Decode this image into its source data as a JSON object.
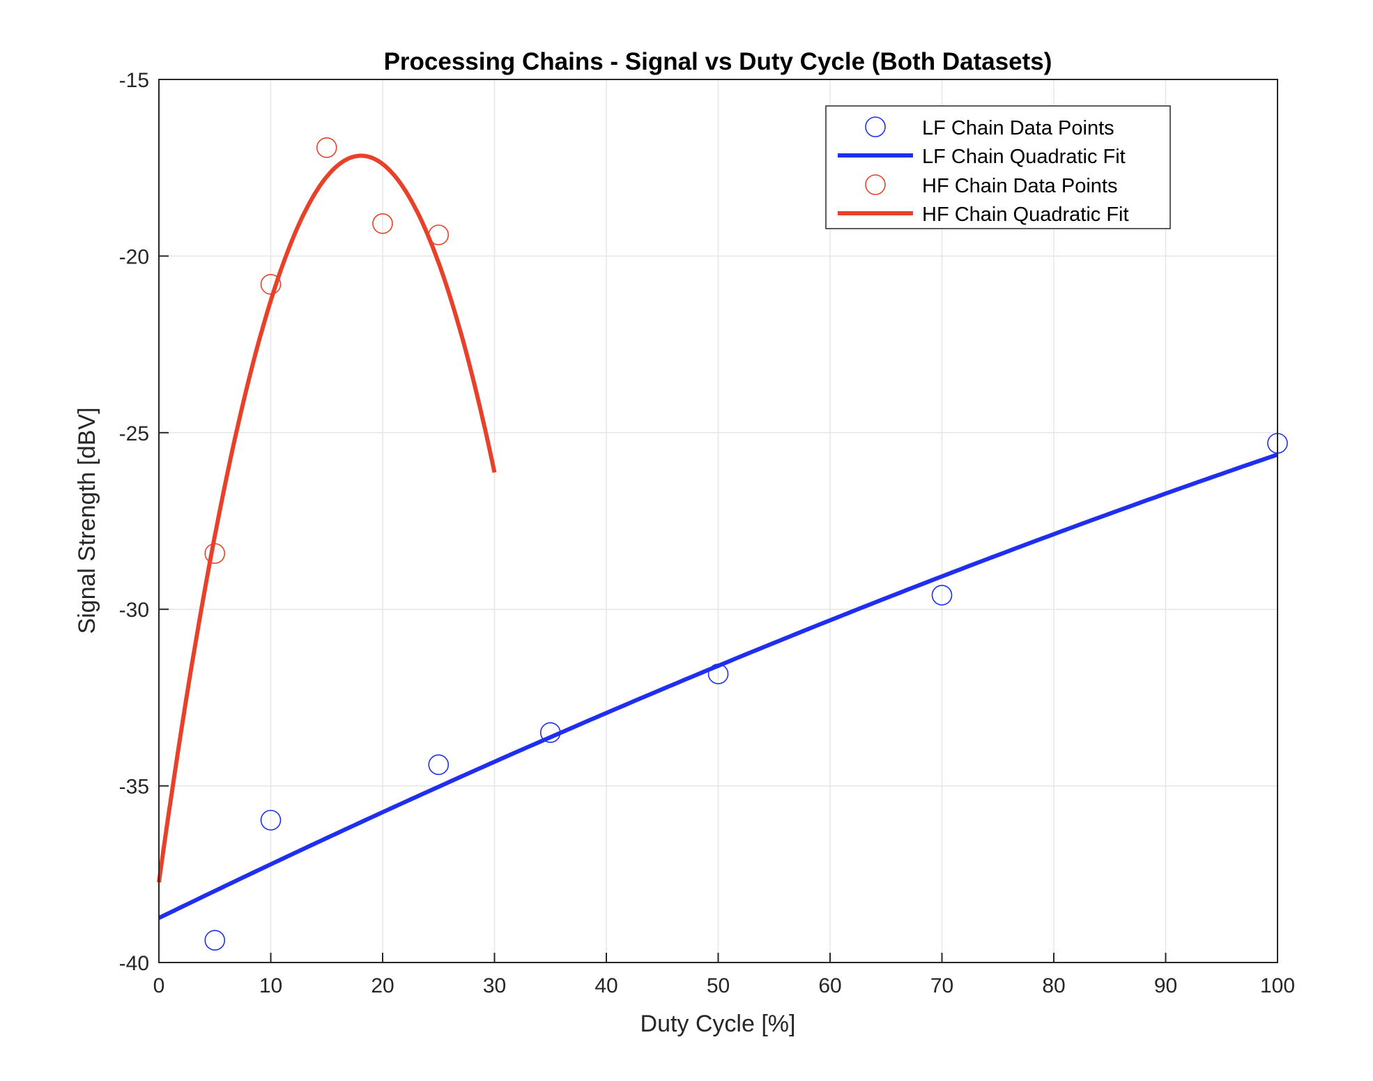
{
  "chart_data": {
    "type": "scatter",
    "title": "Processing Chains - Signal vs Duty Cycle (Both Datasets)",
    "xlabel": "Duty Cycle [%]",
    "ylabel": "Signal Strength [dBV]",
    "xlim": [
      0,
      100
    ],
    "ylim": [
      -40,
      -15
    ],
    "xticks": [
      0,
      10,
      20,
      30,
      40,
      50,
      60,
      70,
      80,
      90,
      100
    ],
    "yticks": [
      -40,
      -35,
      -30,
      -25,
      -20,
      -15
    ],
    "grid": true,
    "legend_position": "upper right (inside)",
    "colors": {
      "lf": "#1f2ff0",
      "hf": "#e8412a"
    },
    "series": [
      {
        "name": "LF Chain Data Points",
        "kind": "markers",
        "marker": "circle",
        "color": "#1f2ff0",
        "x": [
          5,
          10,
          25,
          35,
          50,
          70,
          100
        ],
        "y": [
          -39.37,
          -35.97,
          -34.4,
          -33.49,
          -31.83,
          -29.6,
          -25.3
        ]
      },
      {
        "name": "LF Chain Quadratic Fit",
        "kind": "line",
        "color": "#1f2ff0",
        "x_range": [
          0,
          100
        ],
        "quadratic": {
          "a": -0.000232,
          "b": 0.1544,
          "c": -38.74
        }
      },
      {
        "name": "HF Chain Data Points",
        "kind": "markers",
        "marker": "circle",
        "color": "#e8412a",
        "x": [
          5,
          10,
          15,
          20,
          25
        ],
        "y": [
          -28.42,
          -20.8,
          -16.93,
          -19.08,
          -19.4
        ]
      },
      {
        "name": "HF Chain Quadratic Fit",
        "kind": "line",
        "color": "#e8412a",
        "x_range": [
          0,
          30
        ],
        "quadratic": {
          "a": -0.063,
          "b": 2.2768,
          "c": -37.73
        }
      }
    ]
  }
}
